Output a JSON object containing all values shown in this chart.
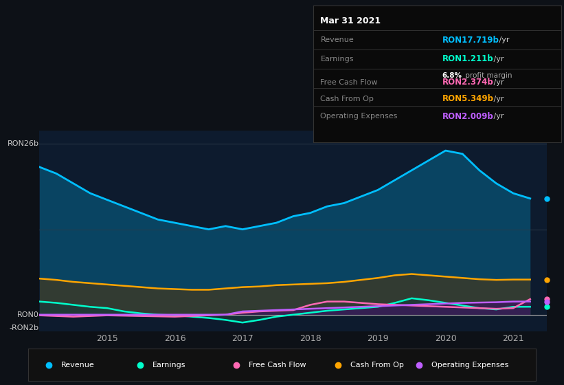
{
  "bg_color": "#0d1117",
  "plot_bg_color": "#0d1b2e",
  "ylim_min": -2.5,
  "ylim_max": 28,
  "xlim_start": 2014.0,
  "xlim_end": 2021.5,
  "xticks": [
    2015,
    2016,
    2017,
    2018,
    2019,
    2020,
    2021
  ],
  "info_box": {
    "date": "Mar 31 2021",
    "revenue_label": "Revenue",
    "revenue_value": "RON17.719b",
    "revenue_color": "#00bfff",
    "earnings_label": "Earnings",
    "earnings_value": "RON1.211b",
    "earnings_color": "#00ffcc",
    "profit_margin": "6.8% profit margin",
    "fcf_label": "Free Cash Flow",
    "fcf_value": "RON2.374b",
    "fcf_color": "#ff69b4",
    "cashop_label": "Cash From Op",
    "cashop_value": "RON5.349b",
    "cashop_color": "#ffa500",
    "opex_label": "Operating Expenses",
    "opex_value": "RON2.009b",
    "opex_color": "#bf5fff"
  },
  "legend": [
    {
      "label": "Revenue",
      "color": "#00bfff"
    },
    {
      "label": "Earnings",
      "color": "#00ffcc"
    },
    {
      "label": "Free Cash Flow",
      "color": "#ff69b4"
    },
    {
      "label": "Cash From Op",
      "color": "#ffa500"
    },
    {
      "label": "Operating Expenses",
      "color": "#bf5fff"
    }
  ],
  "revenue": {
    "x": [
      2014.0,
      2014.25,
      2014.5,
      2014.75,
      2015.0,
      2015.25,
      2015.5,
      2015.75,
      2016.0,
      2016.25,
      2016.5,
      2016.75,
      2017.0,
      2017.25,
      2017.5,
      2017.75,
      2018.0,
      2018.25,
      2018.5,
      2018.75,
      2019.0,
      2019.25,
      2019.5,
      2019.75,
      2020.0,
      2020.25,
      2020.5,
      2020.75,
      2021.0,
      2021.25
    ],
    "y": [
      22.5,
      21.5,
      20.0,
      18.5,
      17.5,
      16.5,
      15.5,
      14.5,
      14.0,
      13.5,
      13.0,
      13.5,
      13.0,
      13.5,
      14.0,
      15.0,
      15.5,
      16.5,
      17.0,
      18.0,
      19.0,
      20.5,
      22.0,
      23.5,
      25.0,
      24.5,
      22.0,
      20.0,
      18.5,
      17.7
    ]
  },
  "cash_from_op": {
    "x": [
      2014.0,
      2014.25,
      2014.5,
      2014.75,
      2015.0,
      2015.25,
      2015.5,
      2015.75,
      2016.0,
      2016.25,
      2016.5,
      2016.75,
      2017.0,
      2017.25,
      2017.5,
      2017.75,
      2018.0,
      2018.25,
      2018.5,
      2018.75,
      2019.0,
      2019.25,
      2019.5,
      2019.75,
      2020.0,
      2020.25,
      2020.5,
      2020.75,
      2021.0,
      2021.25
    ],
    "y": [
      5.5,
      5.3,
      5.0,
      4.8,
      4.6,
      4.4,
      4.2,
      4.0,
      3.9,
      3.8,
      3.8,
      4.0,
      4.2,
      4.3,
      4.5,
      4.6,
      4.7,
      4.8,
      5.0,
      5.3,
      5.6,
      6.0,
      6.2,
      6.0,
      5.8,
      5.6,
      5.4,
      5.3,
      5.35,
      5.35
    ]
  },
  "earnings": {
    "x": [
      2014.0,
      2014.25,
      2014.5,
      2014.75,
      2015.0,
      2015.25,
      2015.5,
      2015.75,
      2016.0,
      2016.25,
      2016.5,
      2016.75,
      2017.0,
      2017.25,
      2017.5,
      2017.75,
      2018.0,
      2018.25,
      2018.5,
      2018.75,
      2019.0,
      2019.25,
      2019.5,
      2019.75,
      2020.0,
      2020.25,
      2020.5,
      2020.75,
      2021.0,
      2021.25
    ],
    "y": [
      2.0,
      1.8,
      1.5,
      1.2,
      1.0,
      0.5,
      0.2,
      0.0,
      -0.1,
      -0.3,
      -0.5,
      -0.8,
      -1.2,
      -0.8,
      -0.3,
      0.0,
      0.3,
      0.6,
      0.8,
      1.0,
      1.2,
      1.8,
      2.5,
      2.2,
      1.8,
      1.4,
      1.0,
      0.8,
      1.2,
      1.211
    ]
  },
  "free_cash_flow": {
    "x": [
      2014.0,
      2014.25,
      2014.5,
      2014.75,
      2015.0,
      2015.25,
      2015.5,
      2015.75,
      2016.0,
      2016.25,
      2016.5,
      2016.75,
      2017.0,
      2017.25,
      2017.5,
      2017.75,
      2018.0,
      2018.25,
      2018.5,
      2018.75,
      2019.0,
      2019.25,
      2019.5,
      2019.75,
      2020.0,
      2020.25,
      2020.5,
      2020.75,
      2021.0,
      2021.25
    ],
    "y": [
      -0.1,
      -0.2,
      -0.3,
      -0.2,
      -0.1,
      -0.15,
      -0.2,
      -0.25,
      -0.3,
      -0.2,
      -0.1,
      0.0,
      0.3,
      0.5,
      0.6,
      0.7,
      1.5,
      2.0,
      2.0,
      1.8,
      1.6,
      1.5,
      1.4,
      1.3,
      1.2,
      1.1,
      1.0,
      0.9,
      1.0,
      2.374
    ]
  },
  "operating_expenses": {
    "x": [
      2014.0,
      2014.25,
      2014.5,
      2014.75,
      2015.0,
      2015.25,
      2015.5,
      2015.75,
      2016.0,
      2016.25,
      2016.5,
      2016.75,
      2017.0,
      2017.25,
      2017.5,
      2017.75,
      2018.0,
      2018.25,
      2018.5,
      2018.75,
      2019.0,
      2019.25,
      2019.5,
      2019.75,
      2020.0,
      2020.25,
      2020.5,
      2020.75,
      2021.0,
      2021.25
    ],
    "y": [
      0.0,
      0.0,
      0.0,
      0.0,
      0.0,
      0.0,
      0.0,
      0.0,
      0.0,
      0.0,
      0.0,
      0.0,
      0.5,
      0.6,
      0.7,
      0.8,
      0.9,
      1.0,
      1.1,
      1.2,
      1.3,
      1.4,
      1.5,
      1.6,
      1.7,
      1.8,
      1.85,
      1.9,
      2.0,
      2.009
    ]
  }
}
